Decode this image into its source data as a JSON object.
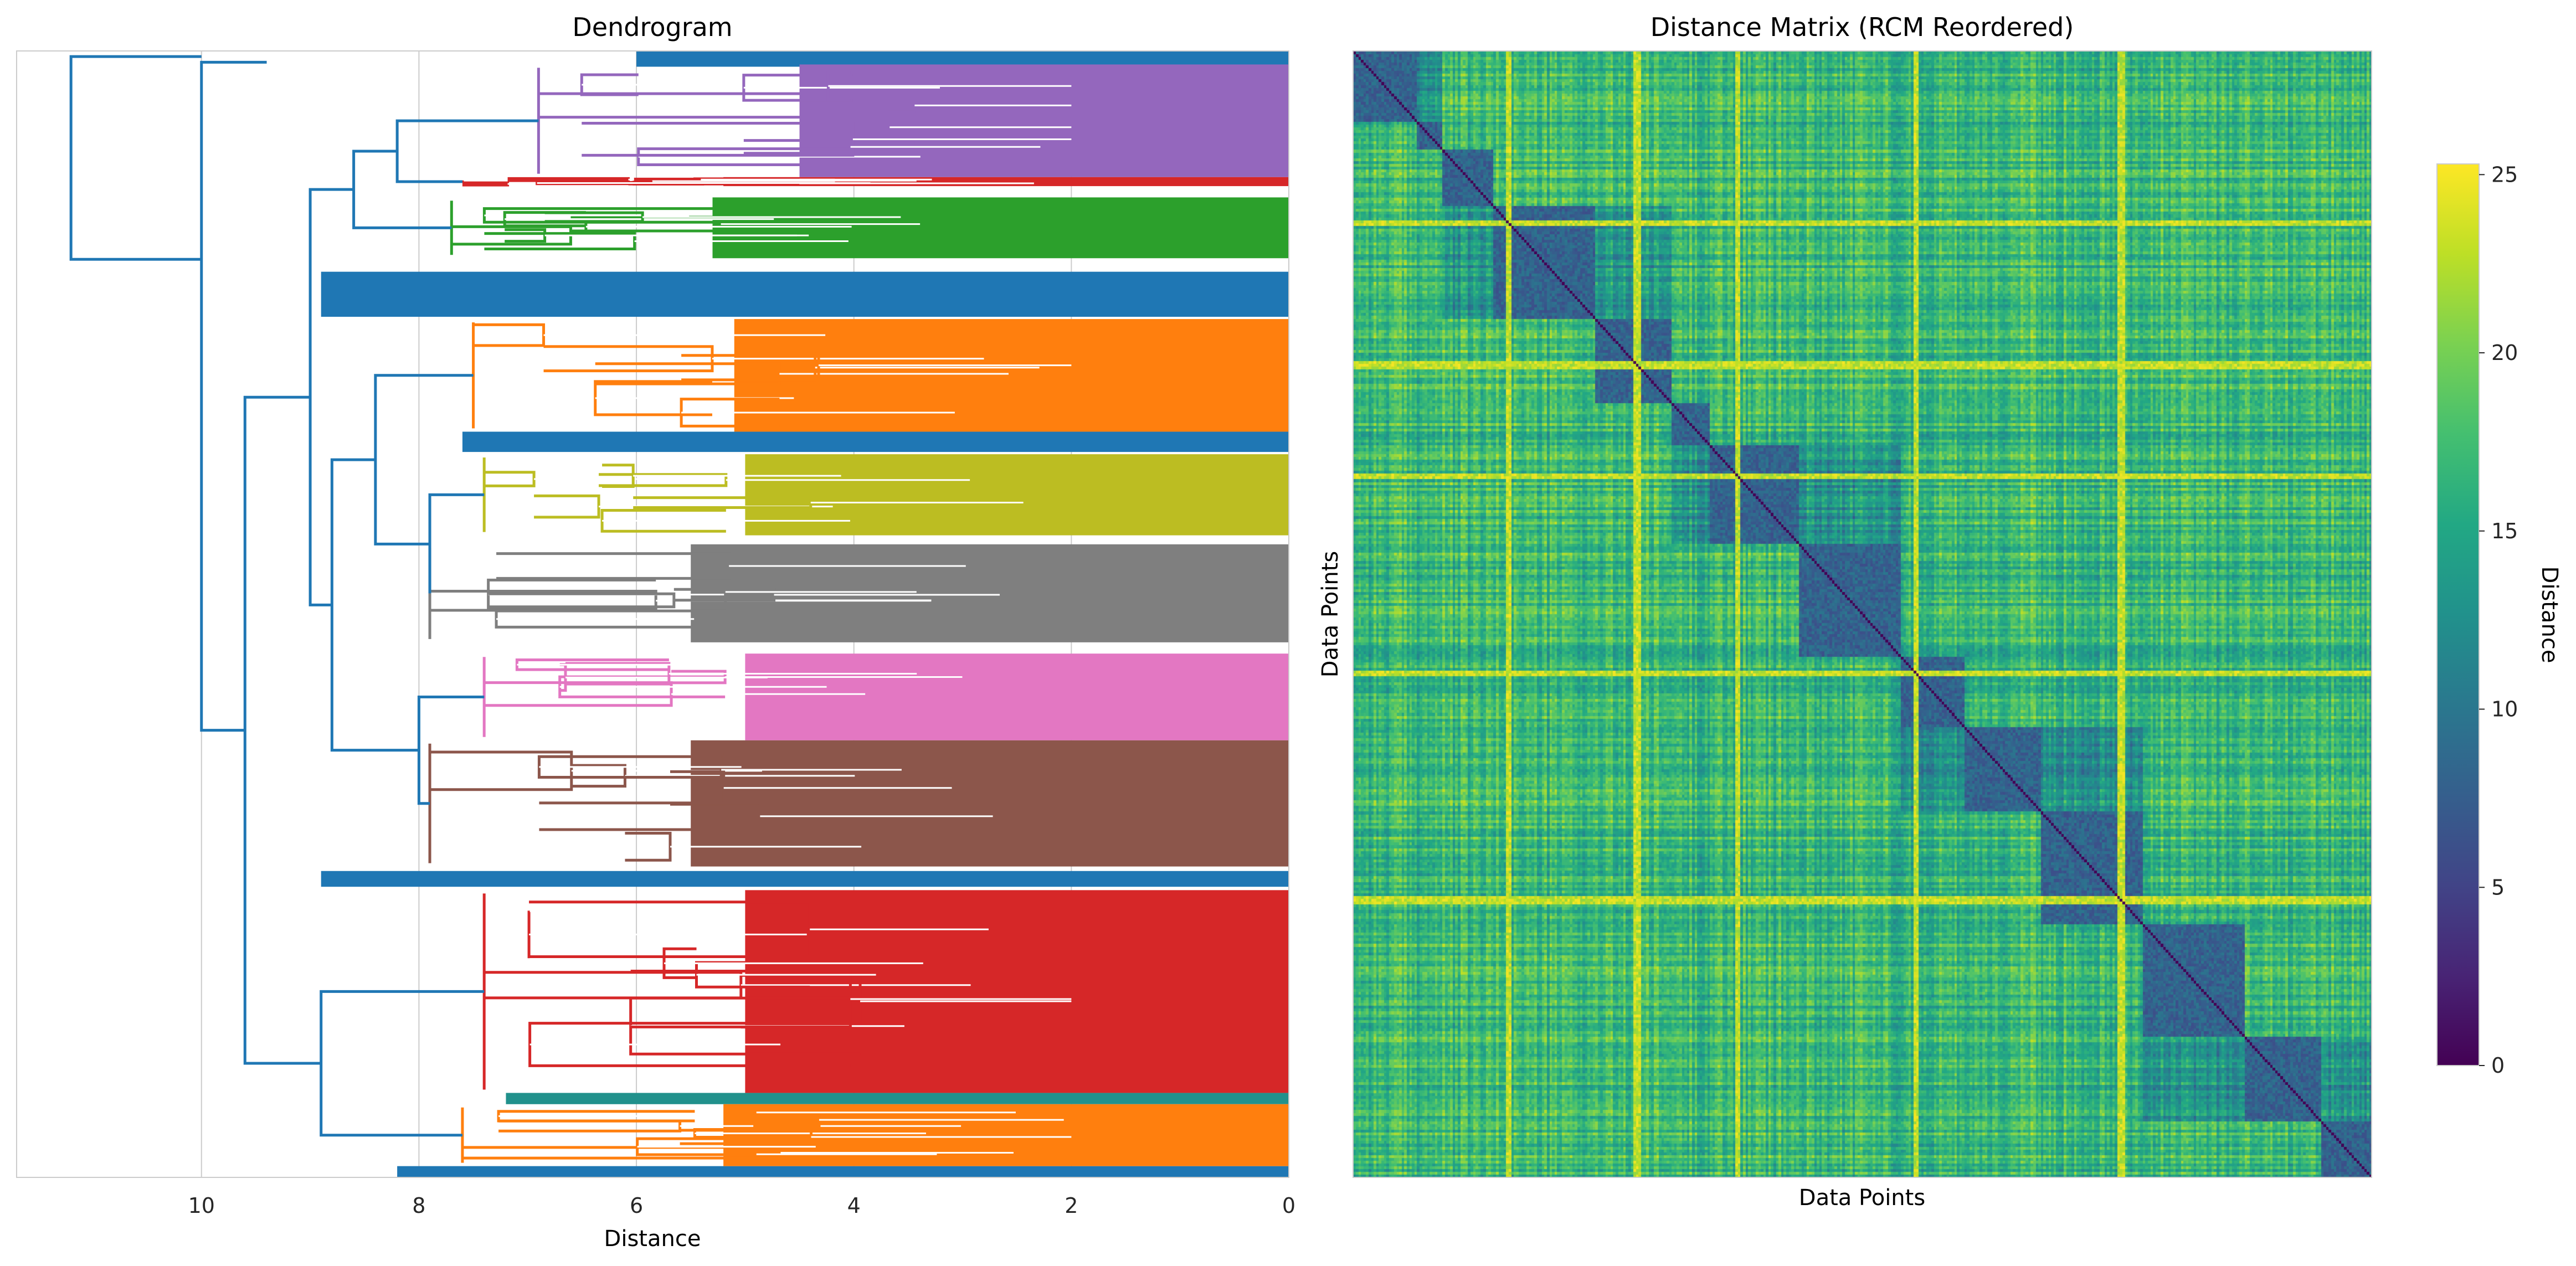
{
  "chart_data": [
    {
      "type": "dendrogram",
      "title": "Dendrogram",
      "xlabel": "Distance",
      "ylabel": "",
      "orientation": "left",
      "xlim": [
        11.7,
        0
      ],
      "x_ticks": [
        10,
        8,
        6,
        4,
        2,
        0
      ],
      "grid": true,
      "link_color_default": "#1f77b4",
      "root_merge_distance": 11.2,
      "clusters": [
        {
          "color": "#9467bd",
          "row_span": [
            0.012,
            0.112
          ],
          "merge_distance": 6.9
        },
        {
          "color": "#d62728",
          "row_span": [
            0.112,
            0.12
          ],
          "merge_distance": 7.6
        },
        {
          "color": "#2ca02c",
          "row_span": [
            0.13,
            0.184
          ],
          "merge_distance": 7.7
        },
        {
          "color": "#ff7f0e",
          "row_span": [
            0.238,
            0.338
          ],
          "merge_distance": 7.5
        },
        {
          "color": "#bcbd22",
          "row_span": [
            0.358,
            0.43
          ],
          "merge_distance": 7.4
        },
        {
          "color": "#7f7f7f",
          "row_span": [
            0.438,
            0.525
          ],
          "merge_distance": 7.9
        },
        {
          "color": "#e377c2",
          "row_span": [
            0.535,
            0.612
          ],
          "merge_distance": 7.4
        },
        {
          "color": "#8c564b",
          "row_span": [
            0.612,
            0.724
          ],
          "merge_distance": 7.9
        },
        {
          "color": "#d62728",
          "row_span": [
            0.745,
            0.925
          ],
          "merge_distance": 7.4
        },
        {
          "color": "#ff7f0e",
          "row_span": [
            0.935,
            0.99
          ],
          "merge_distance": 7.6
        }
      ]
    },
    {
      "type": "heatmap",
      "title": "Distance Matrix (RCM Reordered)",
      "xlabel": "Data Points",
      "ylabel": "Data Points",
      "colormap": "viridis",
      "colorbar_label": "Distance",
      "vmin": 0,
      "vmax": 25.3,
      "colorbar_ticks": [
        0,
        5,
        10,
        15,
        20,
        25
      ],
      "diagonal_value": 0,
      "off_diagonal_range": [
        5,
        25
      ]
    }
  ]
}
